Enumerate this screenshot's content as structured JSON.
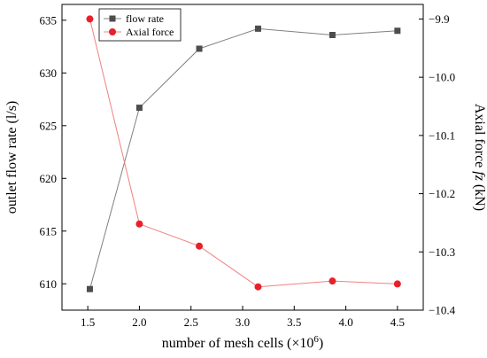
{
  "chart_data": {
    "type": "line",
    "x": [
      1.52,
      2.0,
      2.58,
      3.15,
      3.87,
      4.5
    ],
    "xlabel": "number of mesh cells (×10",
    "xlabel_sup": "6",
    "xlabel_close": ")",
    "xlim": [
      1.25,
      4.75
    ],
    "xticks": [
      1.5,
      2.0,
      2.5,
      3.0,
      3.5,
      4.0,
      4.5
    ],
    "xtick_labels": [
      "1.5",
      "2.0",
      "2.5",
      "3.0",
      "3.5",
      "4.0",
      "4.5"
    ],
    "ylabel_left": "outlet flow rate (l/s)",
    "ylim_left": [
      607.5,
      636.5
    ],
    "yticks_left": [
      610,
      615,
      620,
      625,
      630,
      635
    ],
    "ylabel_right": "Axial force ",
    "ylabel_right_italic": "fz",
    "ylabel_right_unit": " (kN)",
    "ylim_right": [
      -10.4,
      -9.875
    ],
    "yticks_right": [
      -9.9,
      -10.0,
      -10.1,
      -10.2,
      -10.3,
      -10.4
    ],
    "ytick_labels_right": [
      "−9.9",
      "−10.0",
      "−10.1",
      "−10.2",
      "−10.3",
      "−10.4"
    ],
    "grid": false,
    "legend_position": "top-left",
    "series": [
      {
        "name": "flow rate",
        "axis": "left",
        "color": "#808080",
        "marker_color": "#4d4d4d",
        "marker": "square",
        "values": [
          609.5,
          626.7,
          632.3,
          634.2,
          633.6,
          634.0
        ]
      },
      {
        "name": "Axial force",
        "axis": "right",
        "color": "#f08080",
        "marker_color": "#e8202a",
        "marker": "circle",
        "values": [
          -9.9,
          -10.252,
          -10.29,
          -10.36,
          -10.35,
          -10.355
        ]
      }
    ]
  }
}
